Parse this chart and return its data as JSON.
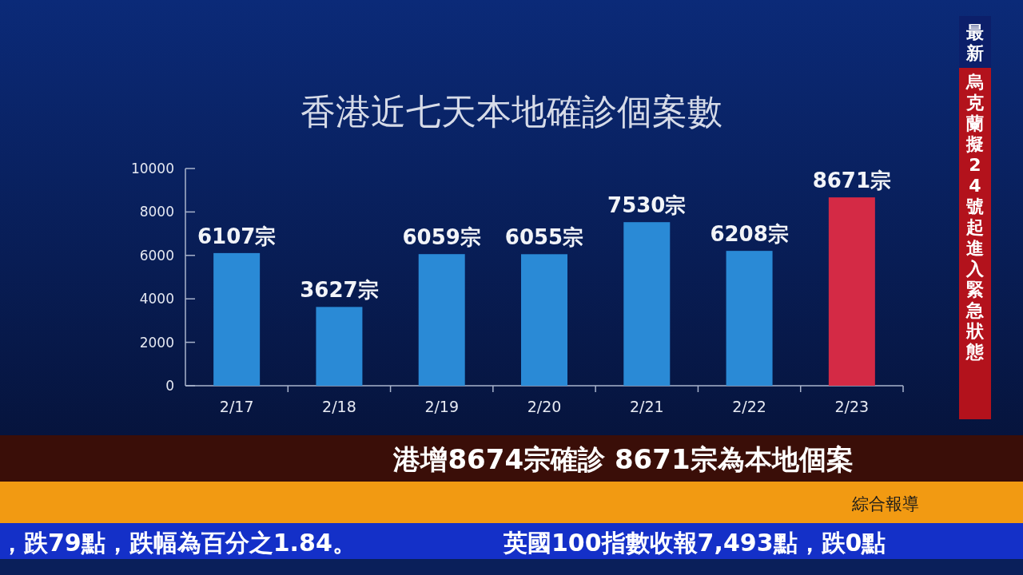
{
  "chart_data": {
    "type": "bar",
    "title": "香港近七天本地確診個案數",
    "categories": [
      "2/17",
      "2/18",
      "2/19",
      "2/20",
      "2/21",
      "2/22",
      "2/23"
    ],
    "values": [
      6107,
      3627,
      6059,
      6055,
      7530,
      6208,
      8671
    ],
    "colors": [
      "#2a8ad6",
      "#2a8ad6",
      "#2a8ad6",
      "#2a8ad6",
      "#2a8ad6",
      "#2a8ad6",
      "#d42a45"
    ],
    "value_labels": [
      "6107宗",
      "3627宗",
      "6059宗",
      "6055宗",
      "7530宗",
      "6208宗",
      "8671宗"
    ],
    "ylim": [
      0,
      10000
    ],
    "yticks": [
      0,
      2000,
      4000,
      6000,
      8000,
      10000
    ],
    "annotations": [
      "港增8674宗確診  8671宗為本地個案",
      "最新",
      "烏克蘭擬24號起進入緊急狀態",
      "綜合報導",
      "，跌79點，跌幅為百分之1.84。",
      "英國100指數收報7,493點，跌0點"
    ]
  }
}
